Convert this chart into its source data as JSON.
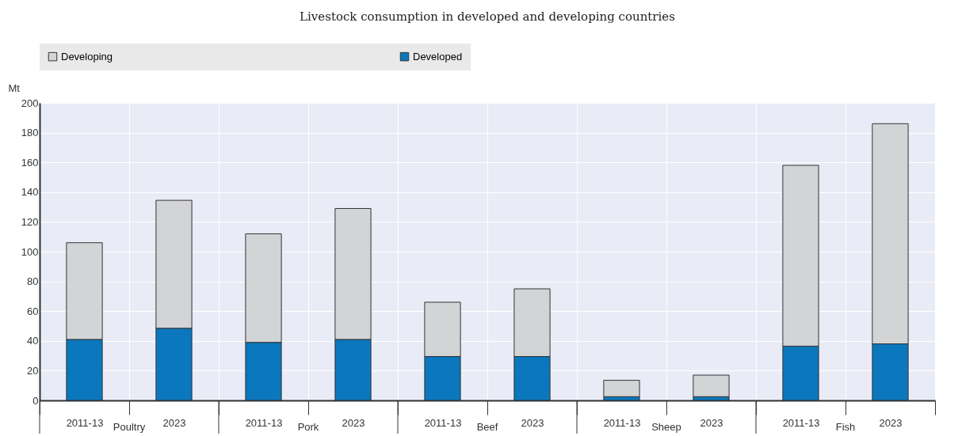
{
  "chart_data": {
    "type": "bar",
    "title": "Livestock consumption in developed and developing countries",
    "ylabel": "Mt",
    "categories": [
      "2011-13",
      "2023",
      "2011-13",
      "2023",
      "2011-13",
      "2023",
      "2011-13",
      "2023",
      "2011-13",
      "2023"
    ],
    "annotations": [
      "Poultry",
      "Pork",
      "Beef",
      "Sheep",
      "Fish"
    ],
    "series": [
      {
        "name": "Developed",
        "color": "#0b77bd",
        "values": [
          41,
          48.5,
          39,
          41,
          29.5,
          29.5,
          2.5,
          2.5,
          36.5,
          38
        ]
      },
      {
        "name": "Developing",
        "color": "#d3d4d6",
        "values": [
          65,
          86,
          73,
          88,
          36.5,
          45.5,
          11,
          14.5,
          121.5,
          148
        ]
      }
    ],
    "stacked": true,
    "ylim": [
      0,
      200
    ],
    "yticks": [
      0,
      20,
      40,
      60,
      80,
      100,
      120,
      140,
      160,
      180,
      200
    ],
    "grid": true,
    "legend": "top"
  }
}
